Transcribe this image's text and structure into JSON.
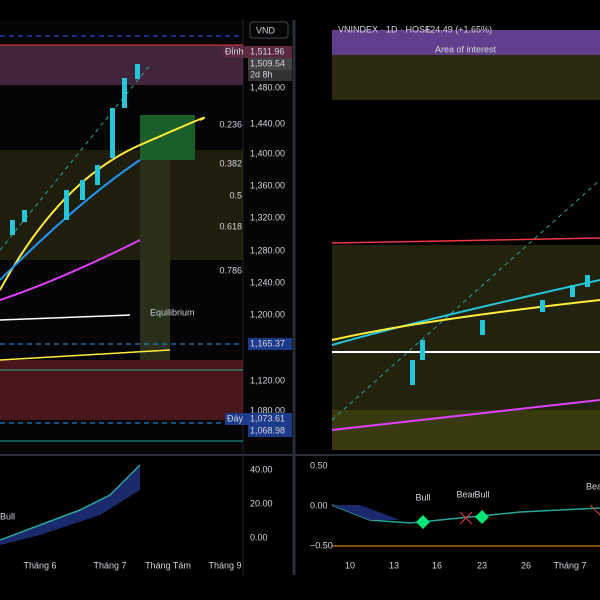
{
  "left_panel": {
    "currency": "VND",
    "top_marker": "Đỉnh",
    "bottom_marker": "Đáy",
    "countdown": "2d 8h",
    "equilibrium": "Equilibrium",
    "price_labels": [
      "1,511.96",
      "1,509.54",
      "1,480.00",
      "1,440.00",
      "1,400.00",
      "1,360.00",
      "1,320.00",
      "1,280.00",
      "1,240.00",
      "1,200.00",
      "1,165.37",
      "1,120.00",
      "1,080.00",
      "1,073.61",
      "1,068.98"
    ],
    "fib_labels": [
      "0.236",
      "0.382",
      "0.5",
      "0.618",
      "0.786"
    ],
    "oscillator_labels": [
      "40.00",
      "20.00",
      "0.00"
    ],
    "signal": "Bull",
    "time_labels": [
      "Tháng 6",
      "Tháng 7",
      "Tháng Tám",
      "Tháng 9"
    ]
  },
  "right_panel": {
    "symbol": "VNINDEX · 1D · HOSE",
    "change": "+24.49 (+1.65%)",
    "zone_label": "Area of interest",
    "oscillator_labels": [
      "0.50",
      "0.00",
      "−0.50"
    ],
    "signals": [
      "Bull",
      "Bear",
      "Bull",
      "Bea"
    ],
    "time_labels": [
      "10",
      "13",
      "16",
      "23",
      "26",
      "Tháng 7"
    ]
  }
}
